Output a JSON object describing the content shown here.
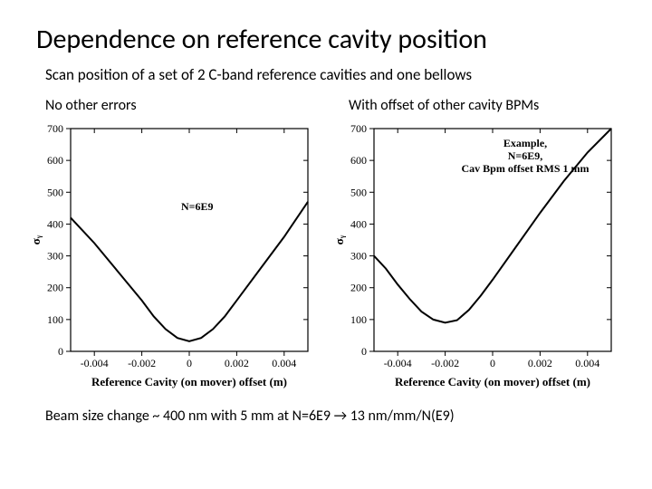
{
  "title": "Dependence on reference cavity position",
  "subtitle": "Scan position of a set of 2 C-band reference cavities and one bellows",
  "footer": "Beam size change ~ 400 nm with 5 mm at N=6E9  →  13 nm/mm/N(E9)",
  "chart_left": {
    "label": "No other errors",
    "type": "line",
    "xlabel": "Reference Cavity (on mover) offset (m)",
    "ylabel": "σᵧ",
    "xlim": [
      -0.005,
      0.005
    ],
    "ylim": [
      0,
      700
    ],
    "xticks": [
      -0.004,
      -0.002,
      0,
      0.002,
      0.004
    ],
    "yticks": [
      0,
      100,
      200,
      300,
      400,
      500,
      600,
      700
    ],
    "xtick_labels": [
      "-0.004",
      "-0.002",
      "0",
      "0.002",
      "0.004"
    ],
    "ytick_labels": [
      "0",
      "100",
      "200",
      "300",
      "400",
      "500",
      "600",
      "700"
    ],
    "annot": [
      "N=6E9"
    ],
    "background_color": "#ffffff",
    "curve_color": "#000000",
    "axis_color": "#000000",
    "curve": [
      {
        "x": -0.005,
        "y": 420
      },
      {
        "x": -0.004,
        "y": 340
      },
      {
        "x": -0.003,
        "y": 250
      },
      {
        "x": -0.002,
        "y": 160
      },
      {
        "x": -0.0015,
        "y": 110
      },
      {
        "x": -0.001,
        "y": 70
      },
      {
        "x": -0.0005,
        "y": 42
      },
      {
        "x": 0.0,
        "y": 32
      },
      {
        "x": 0.0005,
        "y": 42
      },
      {
        "x": 0.001,
        "y": 70
      },
      {
        "x": 0.0015,
        "y": 110
      },
      {
        "x": 0.002,
        "y": 160
      },
      {
        "x": 0.003,
        "y": 260
      },
      {
        "x": 0.004,
        "y": 360
      },
      {
        "x": 0.005,
        "y": 470
      }
    ]
  },
  "chart_right": {
    "label": "With offset of other cavity BPMs",
    "type": "line",
    "xlabel": "Reference Cavity (on mover) offset (m)",
    "ylabel": "σᵧ",
    "xlim": [
      -0.005,
      0.005
    ],
    "ylim": [
      0,
      700
    ],
    "xticks": [
      -0.004,
      -0.002,
      0,
      0.002,
      0.004
    ],
    "yticks": [
      0,
      100,
      200,
      300,
      400,
      500,
      600,
      700
    ],
    "xtick_labels": [
      "-0.004",
      "-0.002",
      "0",
      "0.002",
      "0.004"
    ],
    "ytick_labels": [
      "0",
      "100",
      "200",
      "300",
      "400",
      "500",
      "600",
      "700"
    ],
    "annot": [
      "Example,",
      "N=6E9,",
      "Cav Bpm offset RMS 1 mm"
    ],
    "background_color": "#ffffff",
    "curve_color": "#000000",
    "axis_color": "#000000",
    "curve": [
      {
        "x": -0.005,
        "y": 300
      },
      {
        "x": -0.0045,
        "y": 260
      },
      {
        "x": -0.004,
        "y": 210
      },
      {
        "x": -0.0035,
        "y": 165
      },
      {
        "x": -0.003,
        "y": 125
      },
      {
        "x": -0.0025,
        "y": 100
      },
      {
        "x": -0.002,
        "y": 90
      },
      {
        "x": -0.0015,
        "y": 98
      },
      {
        "x": -0.001,
        "y": 130
      },
      {
        "x": -0.0005,
        "y": 175
      },
      {
        "x": 0.0,
        "y": 225
      },
      {
        "x": 0.001,
        "y": 330
      },
      {
        "x": 0.002,
        "y": 435
      },
      {
        "x": 0.003,
        "y": 535
      },
      {
        "x": 0.004,
        "y": 625
      },
      {
        "x": 0.005,
        "y": 700
      }
    ]
  }
}
